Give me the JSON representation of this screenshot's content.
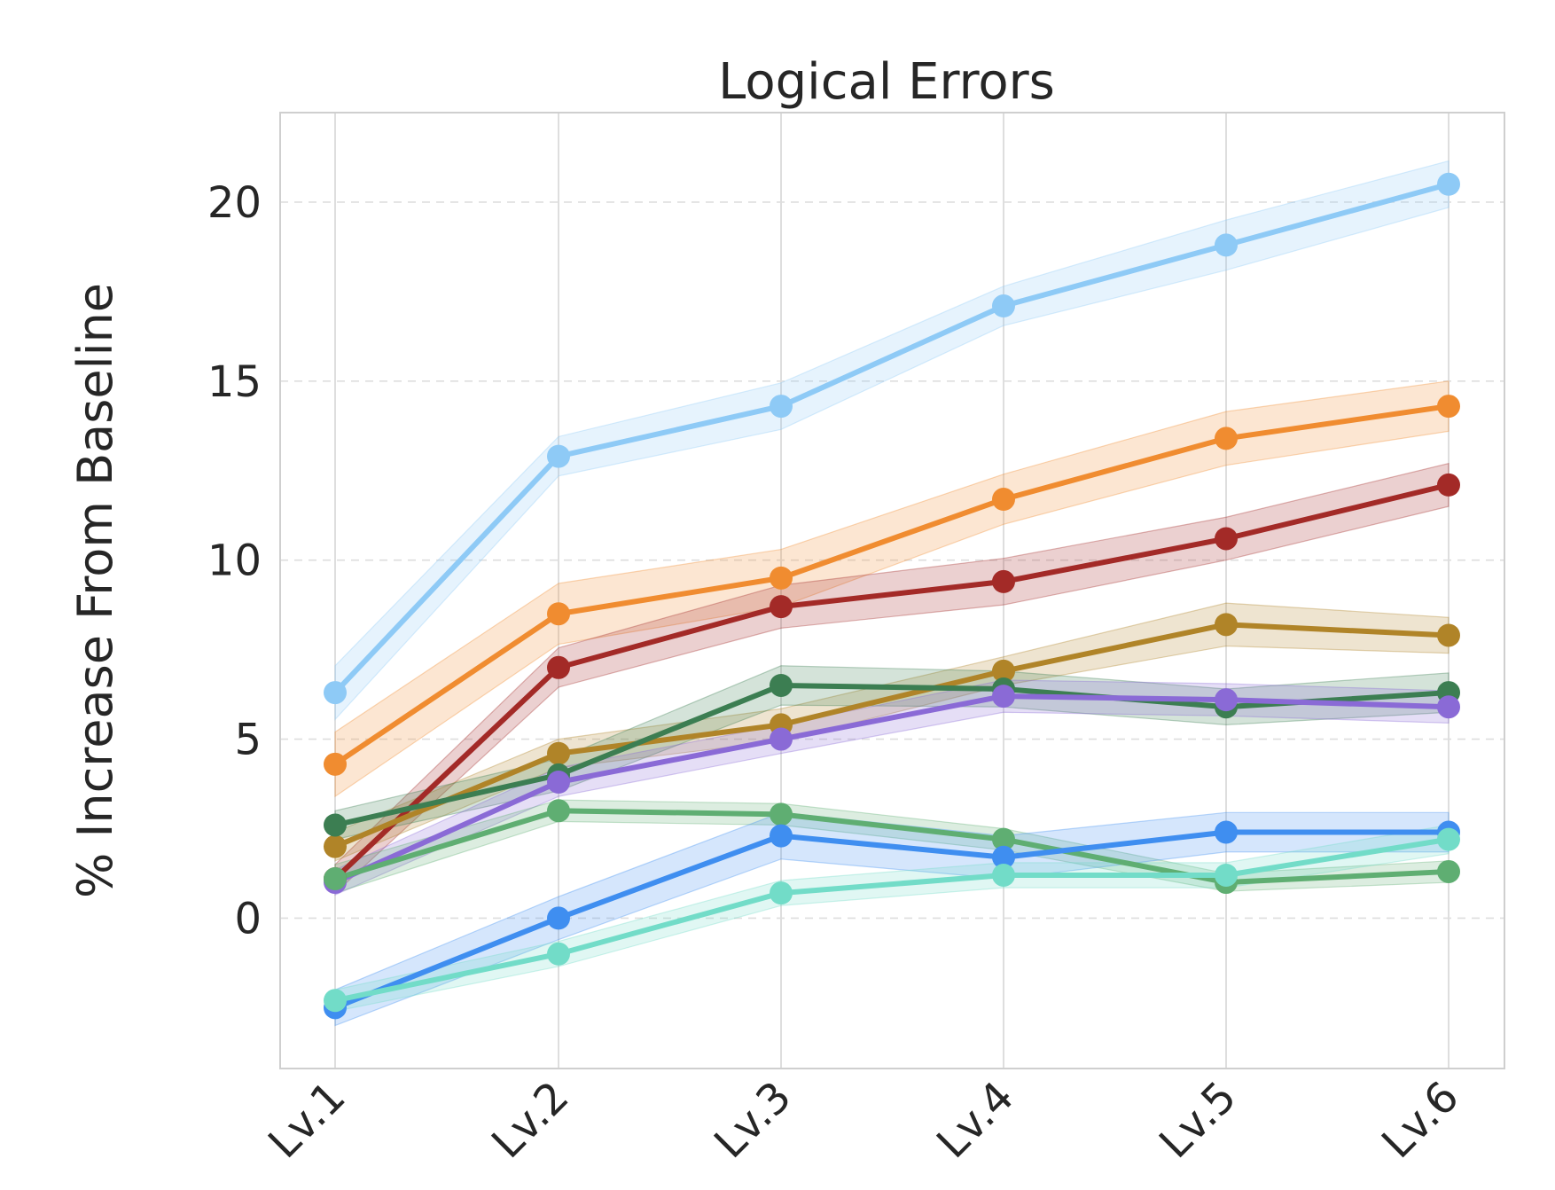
{
  "chart_data": {
    "type": "line",
    "title": "Logical Errors",
    "xlabel": "",
    "ylabel": "% Increase From Baseline",
    "x": [
      "Lv.1",
      "Lv.2",
      "Lv.3",
      "Lv.4",
      "Lv.5",
      "Lv.6"
    ],
    "ylim": [
      -4.2,
      22.5
    ],
    "yticks": [
      0,
      5,
      10,
      15,
      20
    ],
    "grid": true,
    "legend": "none",
    "series": [
      {
        "color": "#8ecaf6",
        "values": [
          6.3,
          12.9,
          14.3,
          17.1,
          18.8,
          20.5
        ],
        "band": [
          0.75,
          0.55,
          0.65,
          0.55,
          0.7,
          0.65
        ]
      },
      {
        "color": "#f08c30",
        "values": [
          4.3,
          8.5,
          9.5,
          11.7,
          13.4,
          14.3
        ],
        "band": [
          0.9,
          0.85,
          0.8,
          0.7,
          0.75,
          0.7
        ]
      },
      {
        "color": "#a32a27",
        "values": [
          1.1,
          7.0,
          8.7,
          9.4,
          10.6,
          12.1
        ],
        "band": [
          0.4,
          0.55,
          0.6,
          0.65,
          0.6,
          0.6
        ]
      },
      {
        "color": "#b08428",
        "values": [
          2.0,
          4.6,
          5.4,
          6.9,
          8.2,
          7.9
        ],
        "band": [
          0.4,
          0.4,
          0.45,
          0.4,
          0.6,
          0.5
        ]
      },
      {
        "color": "#3c7e52",
        "values": [
          2.6,
          4.0,
          6.5,
          6.4,
          5.9,
          6.3
        ],
        "band": [
          0.4,
          0.45,
          0.55,
          0.5,
          0.5,
          0.55
        ]
      },
      {
        "color": "#8a6ad6",
        "values": [
          1.0,
          3.8,
          5.0,
          6.2,
          6.1,
          5.9
        ],
        "band": [
          0.35,
          0.4,
          0.4,
          0.45,
          0.45,
          0.45
        ]
      },
      {
        "color": "#5fae72",
        "values": [
          1.1,
          3.0,
          2.9,
          2.2,
          1.0,
          1.3
        ],
        "band": [
          0.4,
          0.3,
          0.3,
          0.3,
          0.25,
          0.3
        ]
      },
      {
        "color": "#3f8ef0",
        "values": [
          -2.5,
          0.0,
          2.3,
          1.7,
          2.4,
          2.4
        ],
        "band": [
          0.5,
          0.6,
          0.65,
          0.6,
          0.55,
          0.55
        ]
      },
      {
        "color": "#72dcc8",
        "values": [
          -2.3,
          -1.0,
          0.7,
          1.2,
          1.2,
          2.2
        ],
        "band": [
          0.3,
          0.35,
          0.35,
          0.35,
          0.35,
          0.4
        ]
      }
    ]
  }
}
